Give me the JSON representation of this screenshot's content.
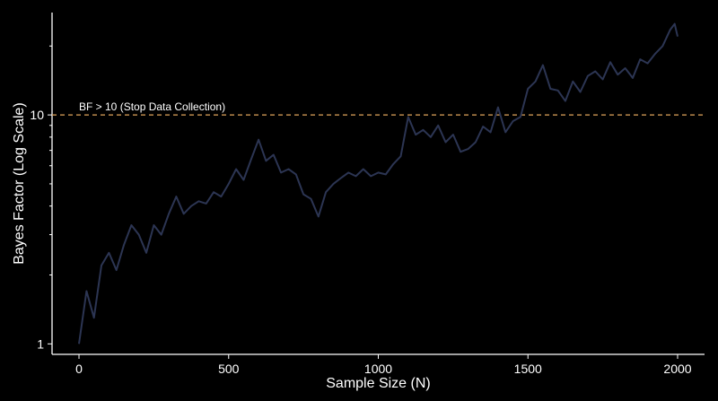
{
  "chart_data": {
    "type": "line",
    "xlabel": "Sample Size (N)",
    "ylabel": "Bayes Factor (Log Scale)",
    "x_ticks": [
      0,
      500,
      1000,
      1500,
      2000
    ],
    "x_tick_labels": [
      "0",
      "500",
      "1000",
      "1500",
      "2000"
    ],
    "y_ticks": [
      1,
      10
    ],
    "y_tick_labels": [
      "1",
      "10"
    ],
    "y_minor_ticks": [
      2,
      3,
      4,
      5,
      6,
      7,
      8,
      9,
      20
    ],
    "y_scale": "log",
    "xlim": [
      -90,
      2090
    ],
    "ylim": [
      0.9,
      28
    ],
    "grid": false,
    "line_color": "#2c3553",
    "threshold_color": "#e0a45a",
    "threshold": {
      "value": 10,
      "label": "BF > 10 (Stop Data Collection)"
    },
    "series": [
      {
        "x": [
          0,
          25,
          50,
          75,
          100,
          125,
          150,
          175,
          200,
          225,
          250,
          275,
          300,
          325,
          350,
          375,
          400,
          425,
          450,
          475,
          500,
          525,
          550,
          575,
          600,
          625,
          650,
          675,
          700,
          725,
          750,
          775,
          800,
          825,
          850,
          875,
          900,
          925,
          950,
          975,
          1000,
          1025,
          1050,
          1075,
          1100,
          1125,
          1150,
          1175,
          1200,
          1225,
          1250,
          1275,
          1300,
          1325,
          1350,
          1375,
          1400,
          1425,
          1450,
          1475,
          1500,
          1525,
          1550,
          1575,
          1600,
          1625,
          1650,
          1675,
          1700,
          1725,
          1750,
          1775,
          1800,
          1825,
          1850,
          1875,
          1900,
          1925,
          1950,
          1975,
          1990,
          2000
        ],
        "y": [
          1.0,
          1.7,
          1.3,
          2.2,
          2.5,
          2.1,
          2.7,
          3.3,
          3.0,
          2.5,
          3.3,
          3.0,
          3.7,
          4.4,
          3.7,
          4.0,
          4.2,
          4.1,
          4.6,
          4.4,
          5.0,
          5.8,
          5.2,
          6.4,
          7.8,
          6.3,
          6.7,
          5.6,
          5.8,
          5.5,
          4.5,
          4.3,
          3.6,
          4.6,
          5.0,
          5.3,
          5.6,
          5.4,
          5.8,
          5.4,
          5.6,
          5.5,
          6.1,
          6.6,
          9.8,
          8.2,
          8.6,
          8.0,
          9.0,
          7.6,
          8.2,
          6.9,
          7.1,
          7.6,
          8.9,
          8.4,
          10.8,
          8.4,
          9.4,
          9.8,
          13.0,
          14.0,
          16.5,
          13.0,
          12.8,
          11.5,
          14.0,
          12.6,
          14.8,
          15.5,
          14.3,
          17.0,
          15.0,
          16.0,
          14.5,
          17.5,
          16.8,
          18.5,
          20.0,
          23.5,
          25.0,
          22.0
        ]
      }
    ]
  }
}
